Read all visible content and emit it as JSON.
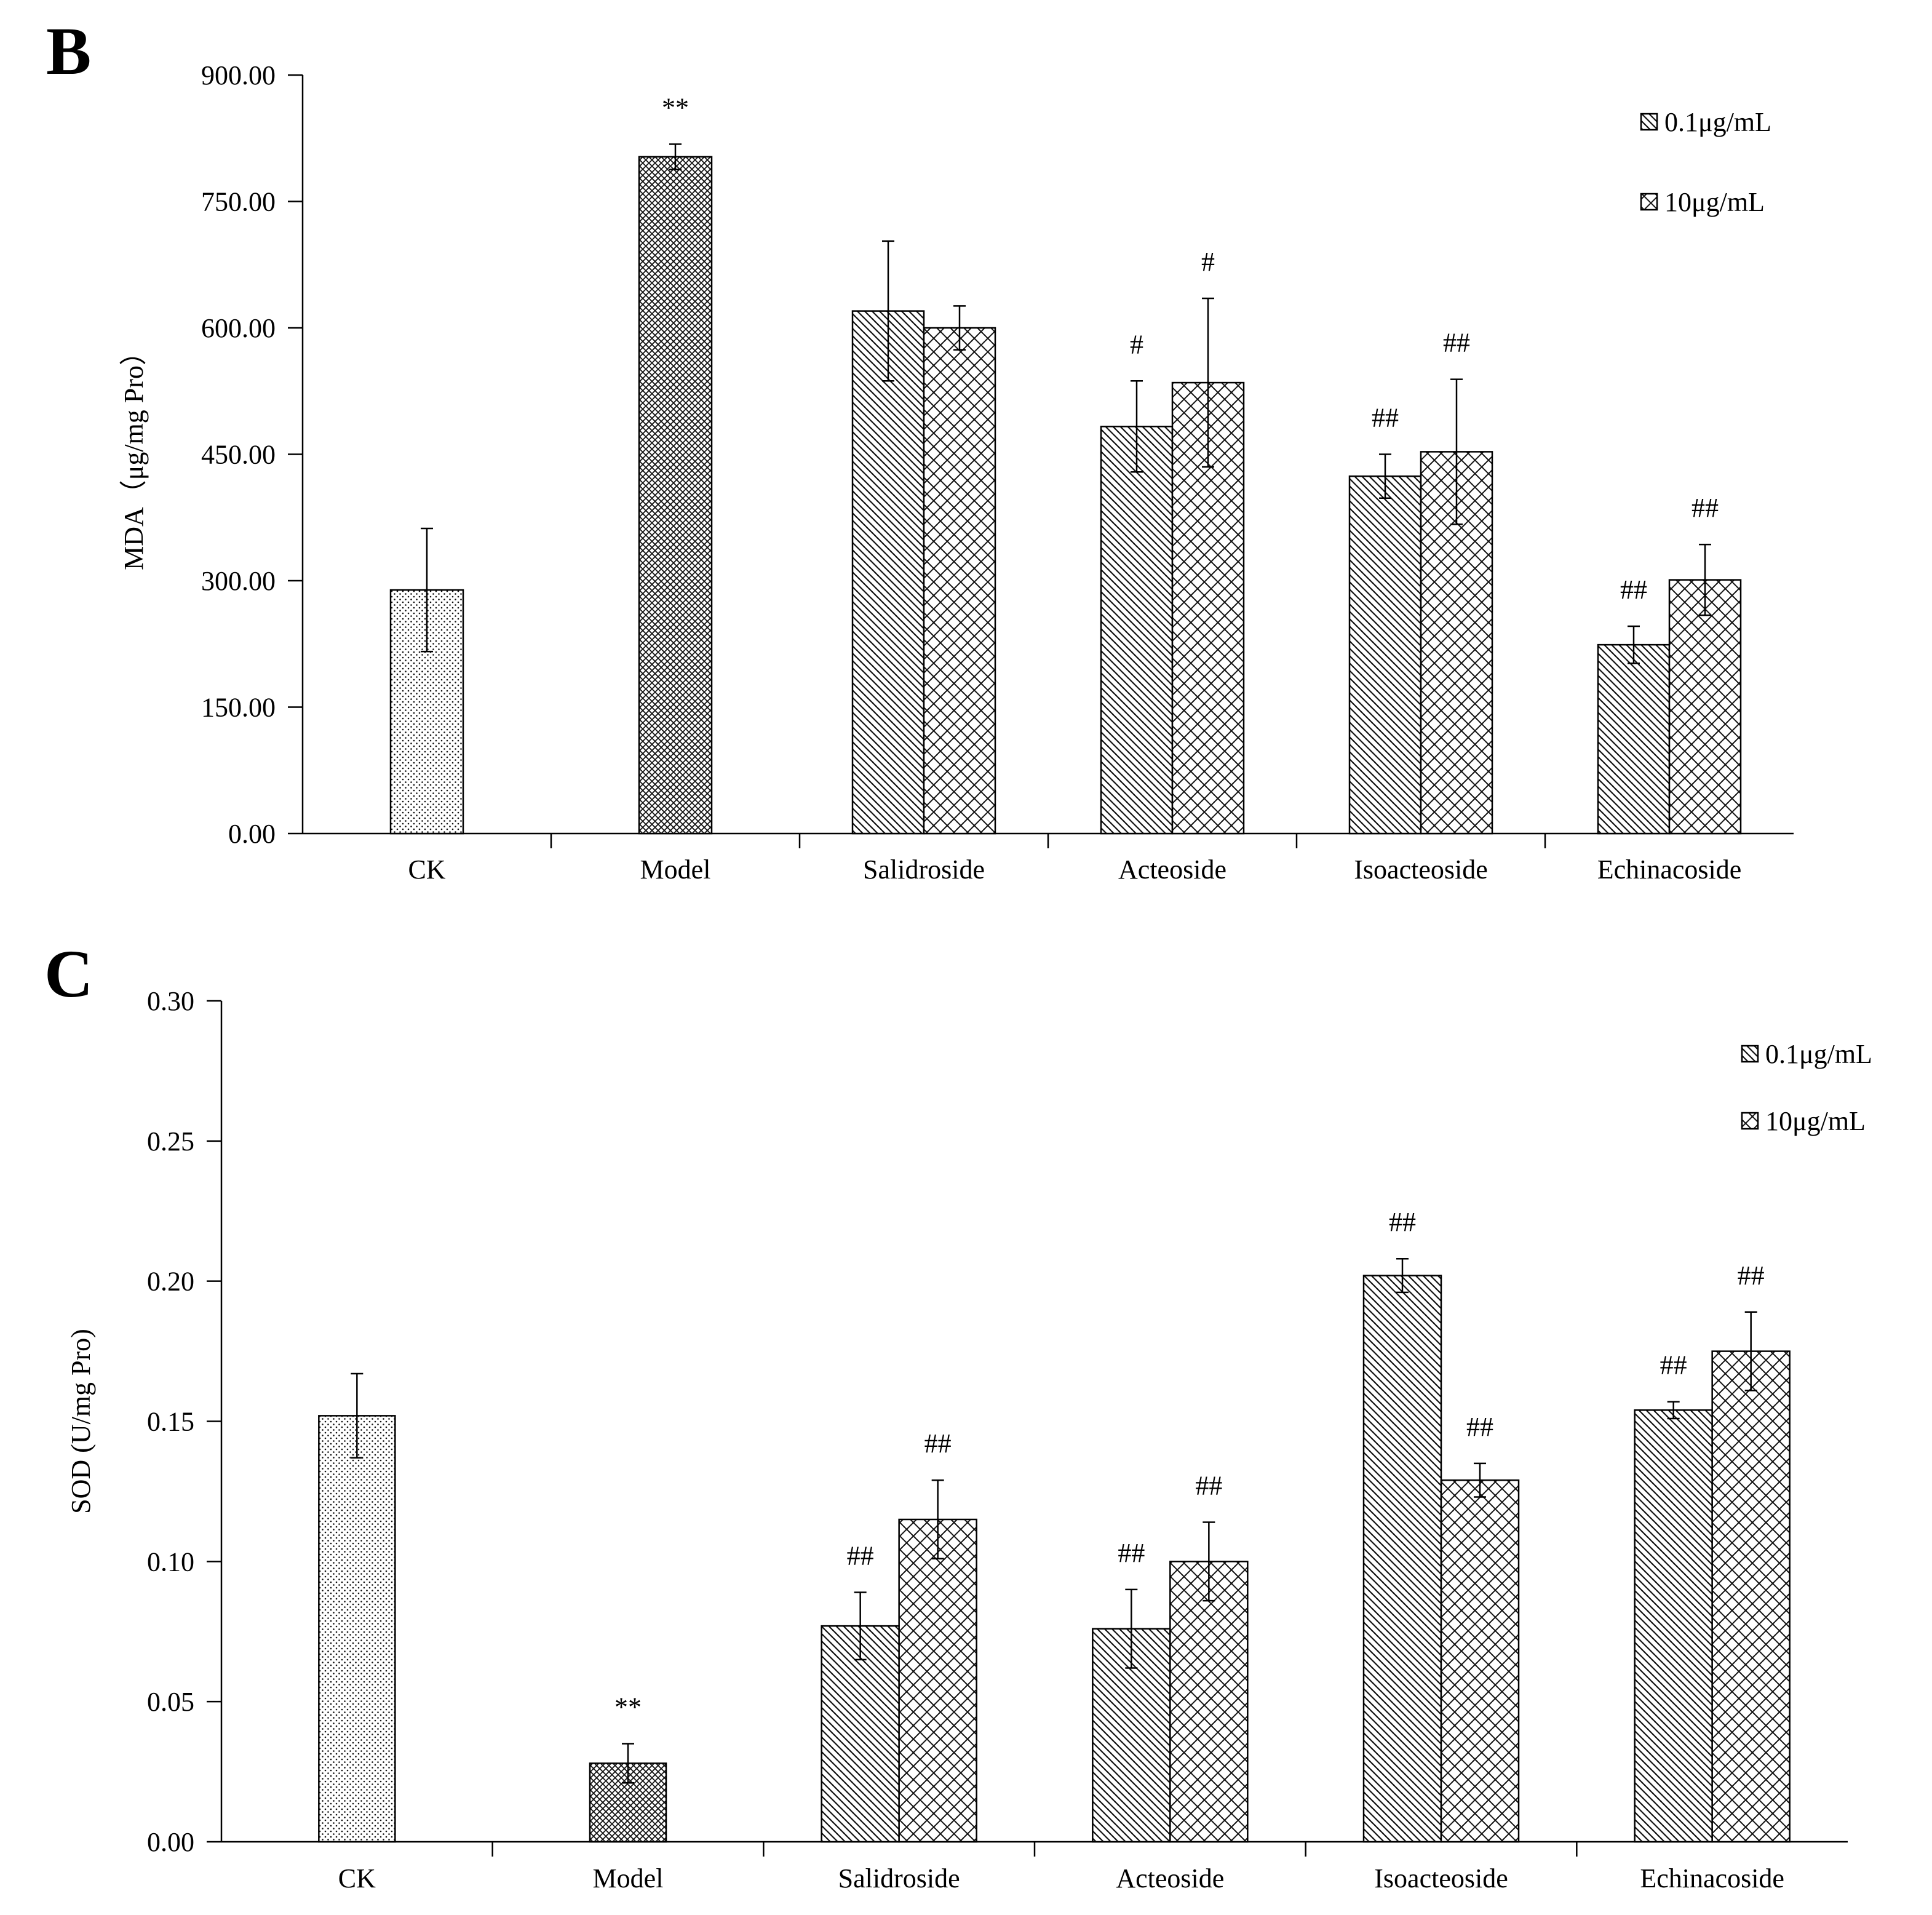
{
  "chart_data": [
    {
      "panel_label": "B",
      "type": "bar",
      "ylabel": "MDA（μg/mg Pro）",
      "ylim": [
        0,
        900
      ],
      "yticks": [
        "0.00",
        "150.00",
        "300.00",
        "450.00",
        "600.00",
        "750.00",
        "900.00"
      ],
      "grid": false,
      "legend_position": "top-right",
      "categories": [
        "CK",
        "Model",
        "Salidroside",
        "Acteoside",
        "Isoacteoside",
        "Echinacoside"
      ],
      "series": [
        {
          "name": "0.1μg/mL",
          "values": [
            null,
            null,
            620,
            483,
            424,
            224
          ],
          "errors": [
            null,
            null,
            83,
            54,
            26,
            22
          ],
          "annotations": [
            "",
            "",
            "",
            "#",
            "##",
            "##"
          ]
        },
        {
          "name": "10μg/mL",
          "values": [
            null,
            null,
            600,
            535,
            453,
            301
          ],
          "errors": [
            null,
            null,
            26,
            100,
            86,
            42
          ],
          "annotations": [
            "",
            "",
            "",
            "#",
            "##",
            "##"
          ]
        }
      ],
      "controls": [
        {
          "category": "CK",
          "value": 289,
          "error": 73,
          "annotation": ""
        },
        {
          "category": "Model",
          "value": 803,
          "error": 15,
          "annotation": "**"
        }
      ]
    },
    {
      "panel_label": "C",
      "type": "bar",
      "ylabel": "SOD (U/mg Pro)",
      "ylim": [
        0,
        0.3
      ],
      "yticks": [
        "0.00",
        "0.05",
        "0.10",
        "0.15",
        "0.20",
        "0.25",
        "0.30"
      ],
      "grid": false,
      "legend_position": "top-right",
      "categories": [
        "CK",
        "Model",
        "Salidroside",
        "Acteoside",
        "Isoacteoside",
        "Echinacoside"
      ],
      "series": [
        {
          "name": "0.1μg/mL",
          "values": [
            null,
            null,
            0.077,
            0.076,
            0.202,
            0.154
          ],
          "errors": [
            null,
            null,
            0.012,
            0.014,
            0.006,
            0.003
          ],
          "annotations": [
            "",
            "",
            "##",
            "##",
            "##",
            "##"
          ]
        },
        {
          "name": "10μg/mL",
          "values": [
            null,
            null,
            0.115,
            0.1,
            0.129,
            0.175
          ],
          "errors": [
            null,
            null,
            0.014,
            0.014,
            0.006,
            0.014
          ],
          "annotations": [
            "",
            "",
            "##",
            "##",
            "##",
            "##"
          ]
        }
      ],
      "controls": [
        {
          "category": "CK",
          "value": 0.152,
          "error": 0.015,
          "annotation": ""
        },
        {
          "category": "Model",
          "value": 0.028,
          "error": 0.007,
          "annotation": "**"
        }
      ]
    }
  ]
}
